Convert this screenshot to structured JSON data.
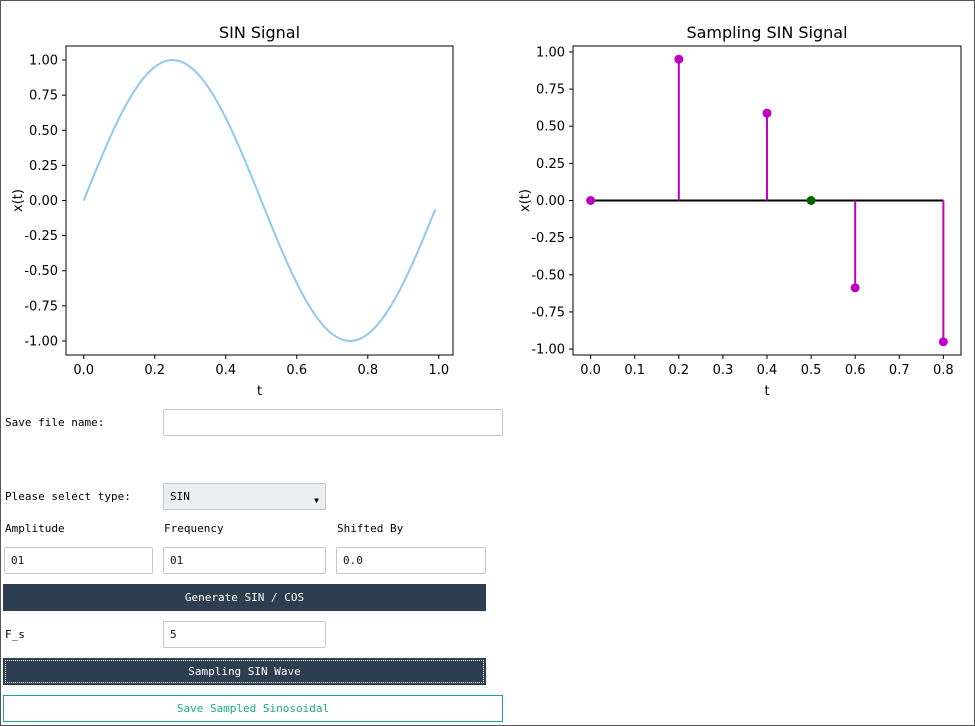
{
  "chart_data": [
    {
      "type": "line",
      "title": "SIN Signal",
      "xlabel": "t",
      "ylabel": "x(t)",
      "xlim": [
        -0.05,
        1.04
      ],
      "ylim": [
        -1.1,
        1.1
      ],
      "x_ticks": [
        "0.0",
        "0.2",
        "0.4",
        "0.6",
        "0.8",
        "1.0"
      ],
      "y_ticks": [
        "1.00",
        "0.75",
        "0.50",
        "0.25",
        "0.00",
        "-0.25",
        "-0.50",
        "-0.75",
        "-1.00"
      ],
      "series": [
        {
          "amplitude": 1,
          "frequency": 1,
          "phase": 0.0,
          "t_start": 0.0,
          "t_end": 0.99,
          "color": "#90c8f0"
        }
      ]
    },
    {
      "type": "scatter",
      "title": "Sampling SIN Signal",
      "xlabel": "t",
      "ylabel": "x(t)",
      "xlim": [
        -0.04,
        0.84
      ],
      "ylim": [
        -1.04,
        1.04
      ],
      "x_ticks": [
        "0.0",
        "0.1",
        "0.2",
        "0.3",
        "0.4",
        "0.5",
        "0.6",
        "0.7",
        "0.8"
      ],
      "y_ticks": [
        "1.00",
        "0.75",
        "0.50",
        "0.25",
        "0.00",
        "-0.25",
        "-0.50",
        "-0.75",
        "-1.00"
      ],
      "samples": [
        {
          "t": 0.0,
          "v": 0.0
        },
        {
          "t": 0.2,
          "v": 0.951
        },
        {
          "t": 0.4,
          "v": 0.588
        },
        {
          "t": 0.6,
          "v": -0.588
        },
        {
          "t": 0.8,
          "v": -0.951
        }
      ],
      "zero_crossing": {
        "t": 0.5,
        "v": 0.0
      },
      "stem_color": "#c000c0",
      "baseline_color": "#000000",
      "crossing_color": "#006400"
    }
  ],
  "form": {
    "save_file_label": "Save file name:",
    "save_file_value": "",
    "type_label": "Please select type:",
    "type_value": "SIN",
    "amplitude_label": "Amplitude",
    "amplitude_value": "01",
    "frequency_label": "Frequency",
    "frequency_value": "01",
    "shift_label": "Shifted By",
    "shift_value": "0.0",
    "generate_label": "Generate SIN / COS",
    "fs_label": "F_s",
    "fs_value": "5",
    "sampling_label": "Sampling SIN Wave",
    "save_sampled_label": "Save Sampled Sinosoidal"
  },
  "colors": {
    "dark_button": "#2c3e50",
    "outline_button": "#1aaa8c"
  }
}
